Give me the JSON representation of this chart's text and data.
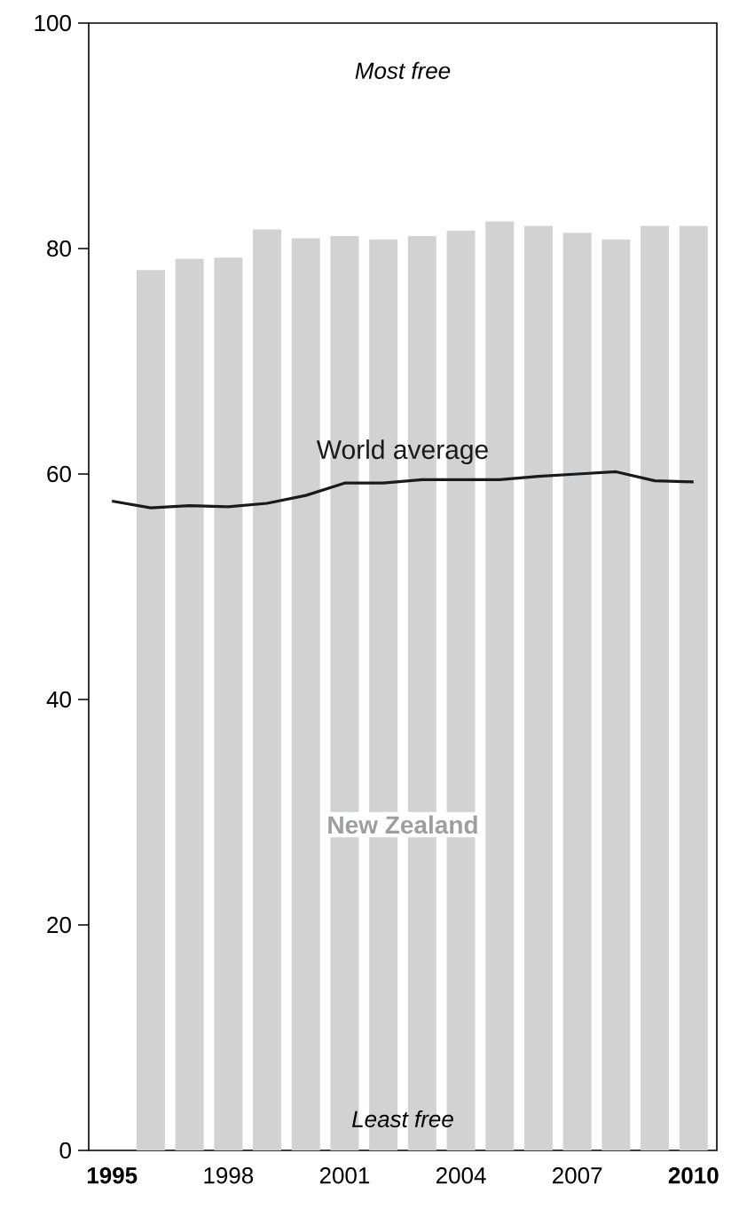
{
  "chart_data": {
    "type": "bar",
    "series": [
      {
        "name": "New Zealand",
        "color": "#d1d2d4",
        "x": [
          1996,
          1997,
          1998,
          1999,
          2000,
          2001,
          2002,
          2003,
          2004,
          2005,
          2006,
          2007,
          2008,
          2009,
          2010
        ],
        "values": [
          78.1,
          79.1,
          79.2,
          81.7,
          80.9,
          81.1,
          80.8,
          81.1,
          81.6,
          82.4,
          82.0,
          81.4,
          80.8,
          82.0,
          82.0
        ]
      },
      {
        "name": "World average",
        "type": "line",
        "color": "#1a1a1a",
        "x": [
          1995,
          1996,
          1997,
          1998,
          1999,
          2000,
          2001,
          2002,
          2003,
          2004,
          2005,
          2006,
          2007,
          2008,
          2009,
          2010
        ],
        "values": [
          57.6,
          57.0,
          57.2,
          57.1,
          57.4,
          58.1,
          59.2,
          59.2,
          59.5,
          59.5,
          59.5,
          59.8,
          60.0,
          60.2,
          59.4,
          59.3
        ]
      }
    ],
    "xlim": [
      1994.4,
      2010.6
    ],
    "xticks": [
      {
        "value": 1995,
        "label": "**1995**"
      },
      1998,
      2001,
      2004,
      2007,
      {
        "value": 2010,
        "label": "**2010**"
      }
    ],
    "ylim": [
      0,
      100
    ],
    "yticks": [
      0,
      20,
      40,
      60,
      80,
      100
    ],
    "annotations": [
      "*Most free*",
      "*Least free*"
    ],
    "grid": false,
    "legend": false
  }
}
